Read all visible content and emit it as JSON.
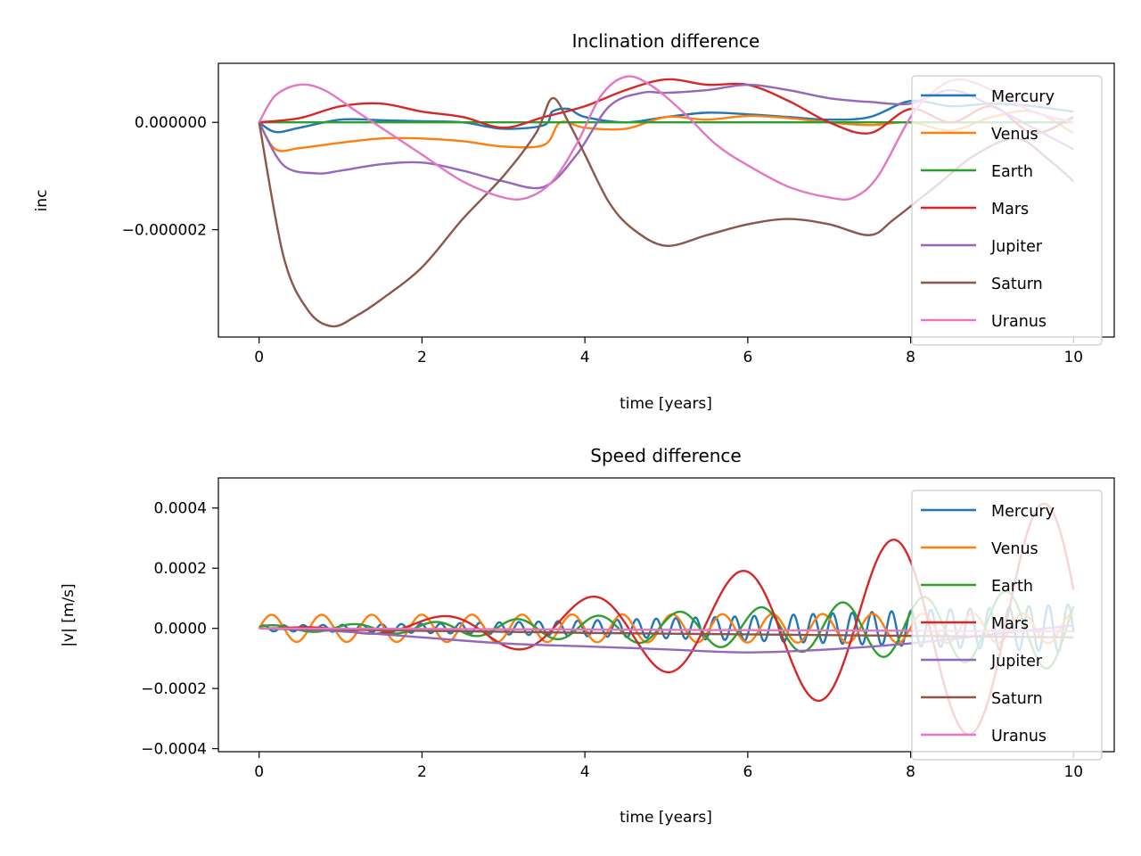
{
  "chart_data": [
    {
      "type": "line",
      "title": "Inclination difference",
      "xlabel": "time [years]",
      "ylabel": "inc",
      "xlim": [
        -0.5,
        10.5
      ],
      "ylim": [
        -4e-06,
        1.1e-06
      ],
      "xticks": [
        0,
        2,
        4,
        6,
        8,
        10
      ],
      "xtick_labels": [
        "0",
        "2",
        "4",
        "6",
        "8",
        "10"
      ],
      "yticks": [
        0.0,
        -2e-06
      ],
      "ytick_labels": [
        "0.000000",
        "−0.000002"
      ],
      "grid": false,
      "legend_position": "top-right",
      "series": [
        {
          "name": "Mercury",
          "color": "#1f77b4",
          "x": [
            0,
            0.2,
            0.5,
            1,
            1.5,
            2,
            2.5,
            3,
            3.5,
            3.6,
            3.8,
            4,
            4.5,
            5,
            5.5,
            6,
            6.5,
            7,
            7.5,
            8,
            8.5,
            9,
            9.5,
            10
          ],
          "y": [
            0,
            -1.8e-07,
            -1e-07,
            5e-08,
            4e-08,
            2e-08,
            0.0,
            -1.2e-07,
            -5e-08,
            2e-07,
            2.5e-07,
            1e-07,
            0.0,
            1e-07,
            1.8e-07,
            1.5e-07,
            1e-07,
            5e-08,
            1e-07,
            4e-07,
            3e-07,
            3.5e-07,
            3e-07,
            2e-07
          ]
        },
        {
          "name": "Venus",
          "color": "#ff7f0e",
          "x": [
            0,
            0.2,
            0.5,
            1,
            1.5,
            2,
            2.5,
            3,
            3.5,
            3.7,
            4,
            4.5,
            5,
            5.5,
            6,
            6.5,
            7,
            7.5,
            8,
            8.5,
            9,
            9.5,
            10
          ],
          "y": [
            0,
            -5e-07,
            -4.8e-07,
            -3.8e-07,
            -3e-07,
            -3e-07,
            -3.5e-07,
            -4.5e-07,
            -4.2e-07,
            0.0,
            -1e-07,
            -1.2e-07,
            1e-07,
            5e-08,
            1.2e-07,
            8e-08,
            0.0,
            -5e-08,
            0.0,
            -1.5e-07,
            1e-07,
            2e-07,
            -2e-07
          ]
        },
        {
          "name": "Earth",
          "color": "#2ca02c",
          "x": [
            0,
            2,
            4,
            6,
            8,
            10
          ],
          "y": [
            0,
            0,
            0,
            0,
            0,
            0
          ]
        },
        {
          "name": "Mars",
          "color": "#d62728",
          "x": [
            0,
            0.5,
            1,
            1.5,
            2,
            2.5,
            3,
            3.5,
            4,
            4.5,
            5,
            5.5,
            6,
            6.5,
            7,
            7.5,
            8,
            8.5,
            9,
            9.5,
            10
          ],
          "y": [
            0,
            8e-08,
            3e-07,
            3.5e-07,
            2e-07,
            1e-07,
            -1e-07,
            1e-07,
            3e-07,
            6e-07,
            8e-07,
            7e-07,
            7e-07,
            4e-07,
            0.0,
            -2e-07,
            2.5e-07,
            0.0,
            3e-07,
            -2e-07,
            1e-07
          ]
        },
        {
          "name": "Jupiter",
          "color": "#9467bd",
          "x": [
            0,
            0.3,
            0.7,
            1,
            1.5,
            2,
            2.5,
            3,
            3.5,
            3.9,
            4.3,
            4.7,
            5,
            5.5,
            6,
            6.5,
            7,
            7.5,
            8,
            8.5,
            9,
            9.5,
            10
          ],
          "y": [
            0,
            -8e-07,
            -9.5e-07,
            -9e-07,
            -7.8e-07,
            -7.5e-07,
            -9e-07,
            -1.1e-06,
            -1.2e-06,
            -6e-07,
            3e-07,
            5.5e-07,
            5.5e-07,
            6e-07,
            7e-07,
            6e-07,
            4.5e-07,
            3.8e-07,
            3.5e-07,
            6e-07,
            3e-07,
            -1e-07,
            -5e-07
          ]
        },
        {
          "name": "Saturn",
          "color": "#8c564b",
          "x": [
            0,
            0.3,
            0.6,
            0.9,
            1.2,
            1.5,
            2,
            2.5,
            3,
            3.4,
            3.6,
            3.8,
            4,
            4.3,
            4.6,
            5,
            5.5,
            6,
            6.5,
            7,
            7.5,
            7.8,
            8.3,
            8.8,
            9.3,
            9.7,
            10
          ],
          "y": [
            0,
            -2.5e-06,
            -3.5e-06,
            -3.8e-06,
            -3.6e-06,
            -3.3e-06,
            -2.7e-06,
            -1.8e-06,
            -1e-06,
            -2e-07,
            4.5e-07,
            0.0,
            -6e-07,
            -1.5e-06,
            -2e-06,
            -2.3e-06,
            -2.1e-06,
            -1.9e-06,
            -1.8e-06,
            -1.9e-06,
            -2.1e-06,
            -1.8e-06,
            -1.2e-06,
            -6e-07,
            -3e-07,
            -7e-07,
            -1.1e-06
          ]
        },
        {
          "name": "Uranus",
          "color": "#e377c2",
          "x": [
            0,
            0.2,
            0.5,
            0.8,
            1.2,
            1.6,
            2,
            2.5,
            3,
            3.3,
            3.6,
            3.9,
            4.2,
            4.5,
            4.8,
            5.2,
            5.6,
            6,
            6.5,
            7,
            7.3,
            7.6,
            8,
            8.3,
            8.6,
            9,
            9.5,
            10
          ],
          "y": [
            0,
            5e-07,
            7e-07,
            6e-07,
            2e-07,
            -2e-07,
            -6e-07,
            -1.1e-06,
            -1.4e-06,
            -1.4e-06,
            -1.1e-06,
            -4e-07,
            5e-07,
            8.5e-07,
            7e-07,
            2e-07,
            -4e-07,
            -8e-07,
            -1.2e-06,
            -1.4e-06,
            -1.4e-06,
            -1e-06,
            1e-07,
            6e-07,
            8e-07,
            6e-07,
            2e-07,
            0.0
          ]
        }
      ]
    },
    {
      "type": "line",
      "title": "Speed difference",
      "xlabel": "time [years]",
      "ylabel": "|v| [m/s]",
      "xlim": [
        -0.5,
        10.5
      ],
      "ylim": [
        -0.00041,
        0.0005
      ],
      "xticks": [
        0,
        2,
        4,
        6,
        8,
        10
      ],
      "xtick_labels": [
        "0",
        "2",
        "4",
        "6",
        "8",
        "10"
      ],
      "yticks": [
        0.0004,
        0.0002,
        0.0,
        -0.0002,
        -0.0004
      ],
      "ytick_labels": [
        "0.0004",
        "0.0002",
        "0.0000",
        "−0.0002",
        "−0.0004"
      ],
      "grid": false,
      "legend_position": "top-right",
      "series": [
        {
          "name": "Mercury",
          "color": "#1f77b4",
          "model": {
            "kind": "sinusoid",
            "period_years": 0.2408,
            "amp_start": 1e-05,
            "amp_end": 8e-05
          }
        },
        {
          "name": "Venus",
          "color": "#ff7f0e",
          "model": {
            "kind": "sinusoid",
            "period_years": 0.615,
            "amp_start": 4.5e-05,
            "amp_end": 5e-05
          }
        },
        {
          "name": "Earth",
          "color": "#2ca02c",
          "model": {
            "kind": "sinusoid",
            "period_years": 1.0,
            "amp_start": 1e-05,
            "amp_end": 0.00014,
            "phase": 0.55
          }
        },
        {
          "name": "Mars",
          "color": "#d62728",
          "model": {
            "kind": "sinusoid",
            "period_years": 1.85,
            "amp_start": 0.0,
            "amp_end": 0.00044,
            "phase": 0.3
          }
        },
        {
          "name": "Jupiter",
          "color": "#9467bd",
          "x": [
            0,
            1,
            2,
            3,
            4,
            5,
            6,
            7,
            8,
            9,
            10
          ],
          "y": [
            0,
            -1e-05,
            -3e-05,
            -5e-05,
            -6e-05,
            -7e-05,
            -8e-05,
            -7e-05,
            -5e-05,
            -2e-05,
            1e-05
          ]
        },
        {
          "name": "Saturn",
          "color": "#8c564b",
          "x": [
            0,
            2,
            4,
            6,
            8,
            10
          ],
          "y": [
            0,
            -8e-06,
            -1.5e-05,
            -2e-05,
            -2.5e-05,
            -3e-05
          ]
        },
        {
          "name": "Uranus",
          "color": "#e377c2",
          "x": [
            0,
            2,
            4,
            6,
            8,
            10
          ],
          "y": [
            0,
            -2e-06,
            -4e-06,
            -6e-06,
            -8e-06,
            -1e-05
          ]
        }
      ]
    }
  ]
}
